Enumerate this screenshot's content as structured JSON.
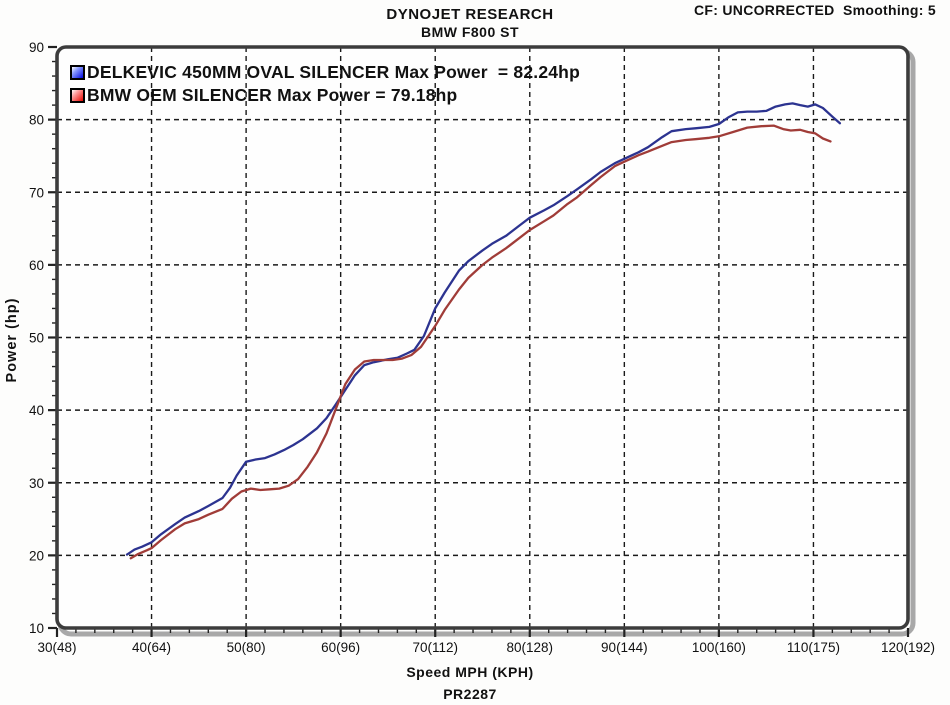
{
  "header": {
    "title": "DYNOJET RESEARCH",
    "subtitle": "BMW F800 ST",
    "correction": "CF: UNCORRECTED  Smoothing: 5"
  },
  "footer": {
    "run_id": "PR2287"
  },
  "chart_data": {
    "type": "line",
    "title": "DYNOJET RESEARCH",
    "subtitle": "BMW F800 ST",
    "xlabel": "Speed MPH (KPH)",
    "ylabel": "Power (hp)",
    "xlim": [
      30,
      120
    ],
    "ylim": [
      10,
      90
    ],
    "grid": "dashed major gridlines",
    "legend_position": "top-left inside plot",
    "x_major_ticks": [
      30,
      40,
      50,
      60,
      70,
      80,
      90,
      100,
      110,
      120
    ],
    "x_tick_labels": [
      "30(48)",
      "40(64)",
      "50(80)",
      "60(96)",
      "70(112)",
      "80(128)",
      "90(144)",
      "100(160)",
      "110(175)",
      "120(192)"
    ],
    "y_major_ticks": [
      10,
      20,
      30,
      40,
      50,
      60,
      70,
      80,
      90
    ],
    "y_tick_labels": [
      "10",
      "20",
      "30",
      "40",
      "50",
      "60",
      "70",
      "80",
      "90"
    ],
    "minor_tick_step": 2,
    "series": [
      {
        "name": "DELKEVIC 450MM OVAL SILENCER",
        "legend": "DELKEVIC 450MM OVAL SILENCER Max Power  = 82.24hp",
        "max_power_hp": 82.24,
        "color": "#2c3390",
        "swatch_gradient": [
          "#ffffff",
          "#0008e0"
        ],
        "points": [
          [
            37.4,
            20.1
          ],
          [
            38.2,
            20.8
          ],
          [
            39,
            21.2
          ],
          [
            40,
            21.8
          ],
          [
            41,
            22.9
          ],
          [
            42.5,
            24.3
          ],
          [
            43.5,
            25.2
          ],
          [
            45,
            26.1
          ],
          [
            46,
            26.8
          ],
          [
            47.5,
            27.9
          ],
          [
            48.3,
            29.3
          ],
          [
            49,
            31.0
          ],
          [
            50,
            32.9
          ],
          [
            51,
            33.2
          ],
          [
            52,
            33.4
          ],
          [
            53,
            33.9
          ],
          [
            54,
            34.5
          ],
          [
            55,
            35.2
          ],
          [
            56,
            36.0
          ],
          [
            57.5,
            37.5
          ],
          [
            58.5,
            38.9
          ],
          [
            59.5,
            40.8
          ],
          [
            60.5,
            42.8
          ],
          [
            61.5,
            44.8
          ],
          [
            62.5,
            46.2
          ],
          [
            63.5,
            46.6
          ],
          [
            65,
            47.0
          ],
          [
            66,
            47.2
          ],
          [
            67,
            47.8
          ],
          [
            67.8,
            48.3
          ],
          [
            68.8,
            50.2
          ],
          [
            70,
            54.0
          ],
          [
            71,
            56.2
          ],
          [
            72.5,
            59.2
          ],
          [
            73.5,
            60.5
          ],
          [
            75,
            62.0
          ],
          [
            76,
            62.9
          ],
          [
            77.5,
            64.0
          ],
          [
            79,
            65.5
          ],
          [
            80,
            66.5
          ],
          [
            81.5,
            67.5
          ],
          [
            82.5,
            68.2
          ],
          [
            84,
            69.5
          ],
          [
            85,
            70.4
          ],
          [
            86.5,
            71.8
          ],
          [
            87.5,
            72.8
          ],
          [
            89,
            74.0
          ],
          [
            90,
            74.6
          ],
          [
            91.5,
            75.5
          ],
          [
            92.5,
            76.2
          ],
          [
            94,
            77.6
          ],
          [
            95,
            78.4
          ],
          [
            96.5,
            78.7
          ],
          [
            97.5,
            78.8
          ],
          [
            99,
            79.0
          ],
          [
            100,
            79.4
          ],
          [
            101,
            80.3
          ],
          [
            102,
            81.0
          ],
          [
            103,
            81.1
          ],
          [
            104,
            81.1
          ],
          [
            105,
            81.2
          ],
          [
            106,
            81.8
          ],
          [
            107,
            82.1
          ],
          [
            107.8,
            82.24
          ],
          [
            108.6,
            82.0
          ],
          [
            109.4,
            81.8
          ],
          [
            110.2,
            82.1
          ],
          [
            111,
            81.6
          ],
          [
            112,
            80.4
          ],
          [
            112.8,
            79.5
          ]
        ]
      },
      {
        "name": "BMW OEM SILENCER",
        "legend": "BMW OEM SILENCER Max Power = 79.18hp",
        "max_power_hp": 79.18,
        "color": "#a03c38",
        "swatch_gradient": [
          "#ffffff",
          "#e80800"
        ],
        "points": [
          [
            37.8,
            19.6
          ],
          [
            38.6,
            20.2
          ],
          [
            39.5,
            20.7
          ],
          [
            40,
            21.0
          ],
          [
            41,
            22.1
          ],
          [
            42.5,
            23.6
          ],
          [
            43.5,
            24.4
          ],
          [
            45,
            25.0
          ],
          [
            46,
            25.6
          ],
          [
            47.5,
            26.4
          ],
          [
            48.5,
            27.8
          ],
          [
            49.5,
            28.8
          ],
          [
            50.5,
            29.2
          ],
          [
            51.5,
            29.0
          ],
          [
            52.5,
            29.1
          ],
          [
            53.5,
            29.2
          ],
          [
            54.5,
            29.6
          ],
          [
            55.5,
            30.5
          ],
          [
            56.5,
            32.2
          ],
          [
            57.5,
            34.2
          ],
          [
            58.5,
            36.8
          ],
          [
            59.5,
            40.2
          ],
          [
            60.5,
            43.6
          ],
          [
            61.5,
            45.6
          ],
          [
            62.5,
            46.7
          ],
          [
            63.5,
            46.9
          ],
          [
            64.5,
            46.9
          ],
          [
            65.5,
            46.9
          ],
          [
            66.5,
            47.1
          ],
          [
            67.5,
            47.6
          ],
          [
            68.5,
            48.7
          ],
          [
            70,
            51.6
          ],
          [
            71,
            53.8
          ],
          [
            72.5,
            56.6
          ],
          [
            73.5,
            58.2
          ],
          [
            75,
            60.0
          ],
          [
            76,
            61.0
          ],
          [
            77.5,
            62.3
          ],
          [
            79,
            63.8
          ],
          [
            80,
            64.8
          ],
          [
            81.5,
            66.0
          ],
          [
            82.5,
            66.8
          ],
          [
            84,
            68.4
          ],
          [
            85,
            69.3
          ],
          [
            86.5,
            71.0
          ],
          [
            87.5,
            72.1
          ],
          [
            89,
            73.6
          ],
          [
            90,
            74.2
          ],
          [
            91.5,
            75.1
          ],
          [
            92.5,
            75.6
          ],
          [
            94,
            76.4
          ],
          [
            95,
            76.9
          ],
          [
            96.5,
            77.2
          ],
          [
            97.5,
            77.3
          ],
          [
            99,
            77.5
          ],
          [
            100,
            77.7
          ],
          [
            101.5,
            78.3
          ],
          [
            103,
            78.9
          ],
          [
            104.5,
            79.1
          ],
          [
            105.8,
            79.18
          ],
          [
            106.8,
            78.7
          ],
          [
            107.6,
            78.5
          ],
          [
            108.6,
            78.6
          ],
          [
            109.4,
            78.3
          ],
          [
            110.2,
            78.1
          ],
          [
            111,
            77.4
          ],
          [
            111.8,
            77.0
          ]
        ]
      }
    ],
    "style": {
      "grid_color": "#1a1a1a",
      "frame_color": "#3c3c3c",
      "shadow_color": "#a8a8a8",
      "tick_color": "#222222"
    }
  }
}
